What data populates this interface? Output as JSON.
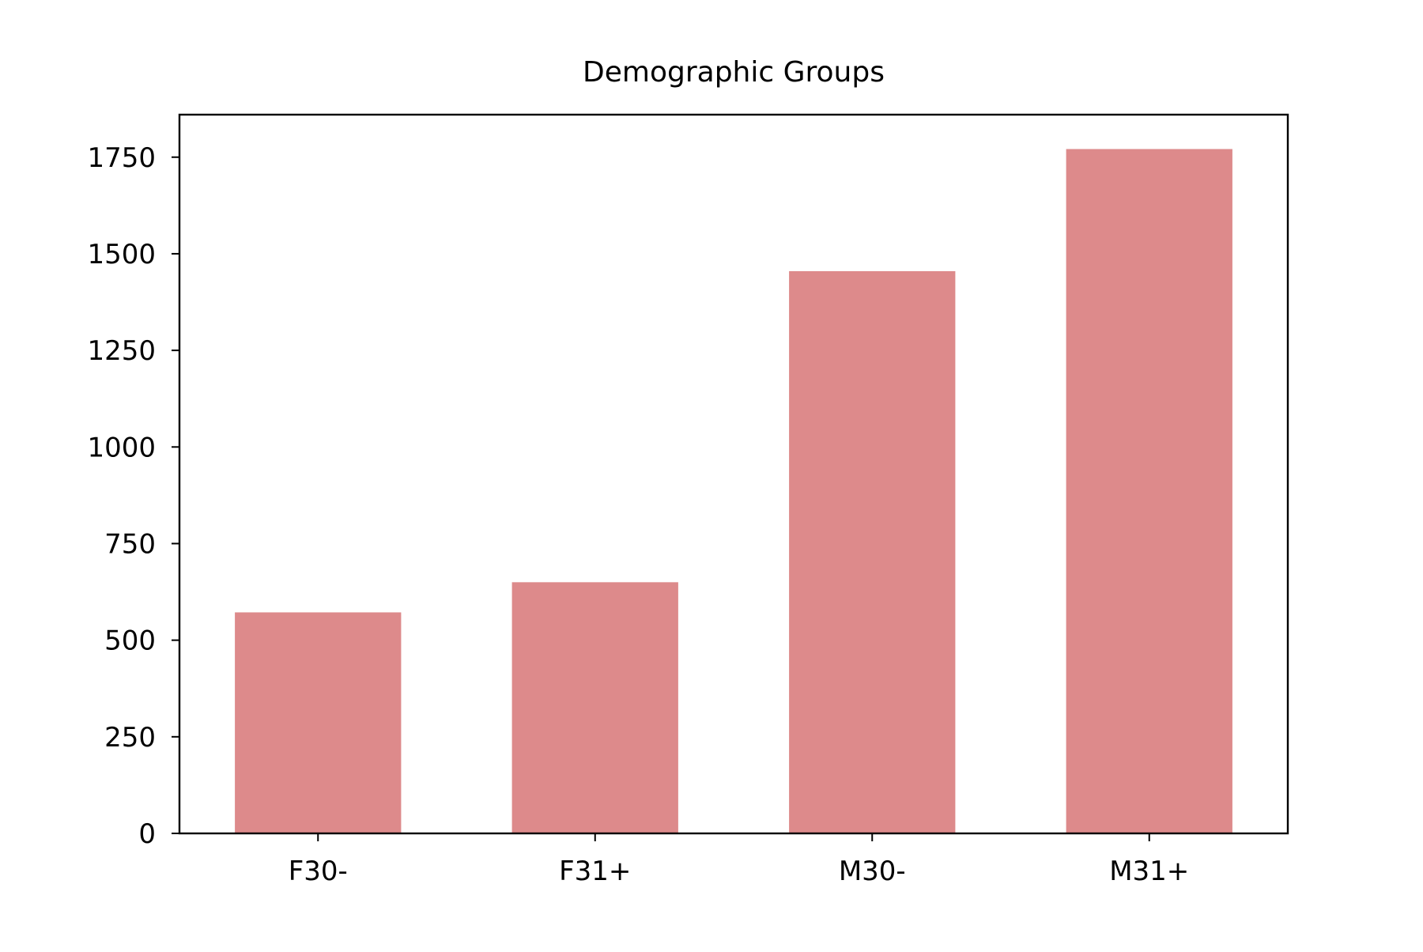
{
  "chart_data": {
    "type": "bar",
    "title": "Demographic Groups",
    "xlabel": "",
    "ylabel": "",
    "categories": [
      "F30-",
      "F31+",
      "M30-",
      "M31+"
    ],
    "values": [
      572,
      650,
      1455,
      1771
    ],
    "ylim": [
      0,
      1860
    ],
    "yticks": [
      0,
      250,
      500,
      750,
      1000,
      1250,
      1500,
      1750
    ],
    "grid": false,
    "bar_color": "#dd8a8b"
  }
}
